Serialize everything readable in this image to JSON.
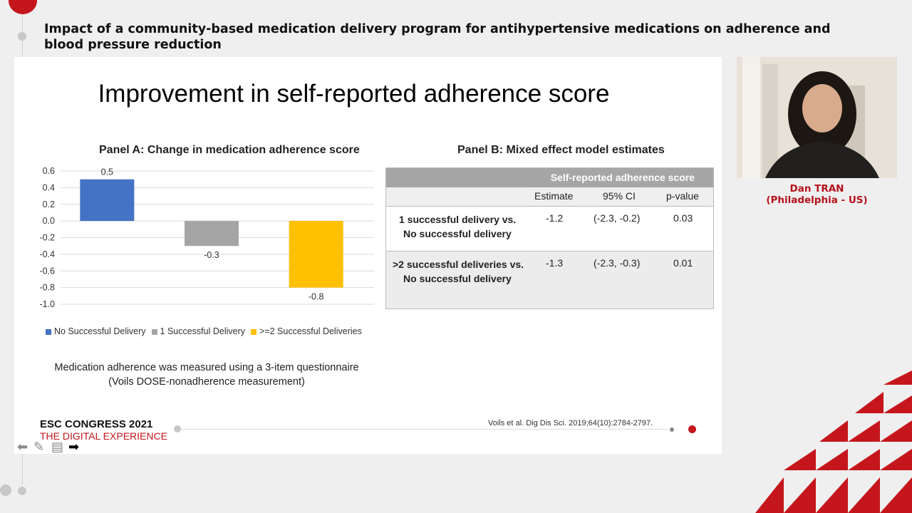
{
  "header": {
    "title": "Impact of a community-based medication delivery program for antihypertensive medications on adherence and blood pressure reduction"
  },
  "slide": {
    "title": "Improvement in self-reported adherence score",
    "panel_a_title": "Panel A: Change in medication adherence score",
    "panel_b_title": "Panel B: Mixed effect model estimates",
    "note_line1": "Medication adherence was measured using a 3-item questionnaire",
    "note_line2": "(Voils DOSE-nonadherence measurement)",
    "reference": "Voils et al. Dig Dis Sci. 2019;64(10):2784-2797.",
    "congress": "ESC CONGRESS 2021",
    "congress_sub": "THE DIGITAL EXPERIENCE"
  },
  "chart_data": {
    "type": "bar",
    "title": "Panel A: Change in medication adherence score",
    "categories": [
      "No Successful Delivery",
      "1 Successful Delivery",
      ">=2 Successful Deliveries"
    ],
    "values": [
      0.5,
      -0.3,
      -0.8
    ],
    "value_labels": [
      "0.5",
      "-0.3",
      "-0.8"
    ],
    "colors": [
      "#4472c4",
      "#a5a5a5",
      "#ffc000"
    ],
    "ylim": [
      -1.0,
      0.6
    ],
    "yticks": [
      "0.6",
      "0.4",
      "0.2",
      "0.0",
      "-0.2",
      "-0.4",
      "-0.6",
      "-0.8",
      "-1.0"
    ],
    "grid": true,
    "legend_position": "bottom"
  },
  "table": {
    "group_header": "Self-reported adherence score",
    "columns": [
      "Estimate",
      "95% CI",
      "p-value"
    ],
    "rows": [
      {
        "label_line1": "1 successful delivery vs.",
        "label_line2": "No successful delivery",
        "estimate": "-1.2",
        "ci": "(-2.3, -0.2)",
        "p": "0.03"
      },
      {
        "label_line1": ">2 successful deliveries vs.",
        "label_line2": "No successful delivery",
        "estimate": "-1.3",
        "ci": "(-2.3, -0.3)",
        "p": "0.01"
      }
    ]
  },
  "speaker": {
    "name": "Dan TRAN",
    "location": "(Philadelphia - US)"
  },
  "toolbar": {
    "icons": [
      "arrow-left-icon",
      "pen-icon",
      "menu-icon",
      "arrow-right-icon"
    ]
  },
  "colors": {
    "accent": "#c4161c"
  }
}
